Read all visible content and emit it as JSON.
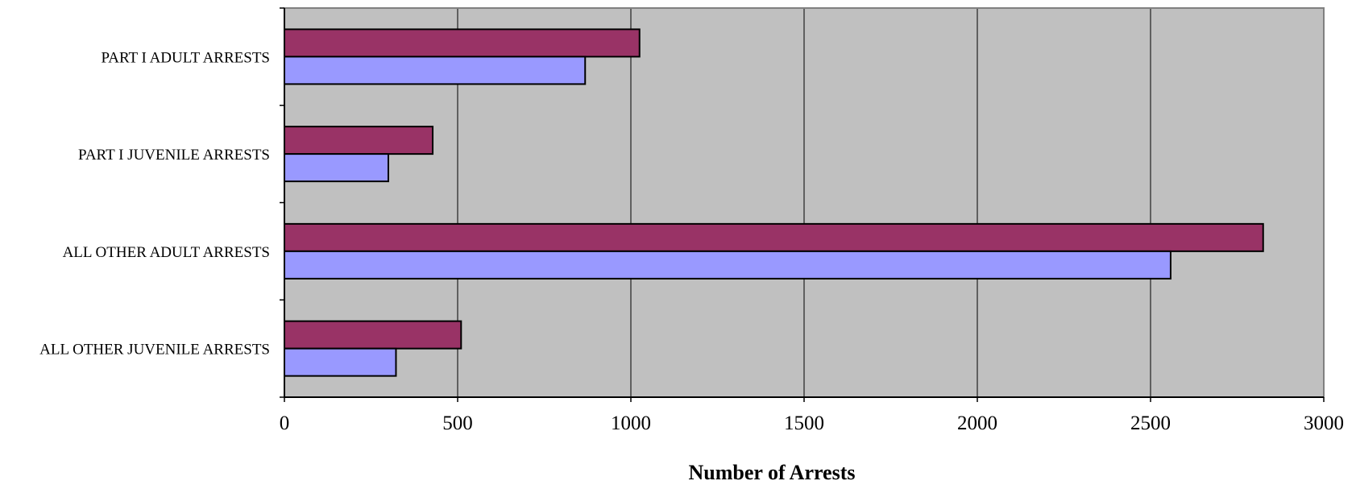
{
  "chart_data": {
    "type": "bar",
    "orientation": "horizontal",
    "title": "",
    "xlabel": "Number of Arrests",
    "ylabel": "",
    "categories": [
      "PART I ADULT ARRESTS",
      "PART I JUVENILE ARRESTS",
      "ALL OTHER ADULT ARRESTS",
      "ALL OTHER JUVENILE ARRESTS"
    ],
    "series": [
      {
        "color": "#993366",
        "values": [
          1025,
          428,
          2825,
          510
        ]
      },
      {
        "color": "#9999ff",
        "values": [
          868,
          300,
          2558,
          322
        ]
      }
    ],
    "xlim": [
      0,
      3000
    ],
    "xticks": [
      0,
      500,
      1000,
      1500,
      2000,
      2500,
      3000
    ],
    "grid": true,
    "legend": "none",
    "plot_background": "#c0c0c0"
  }
}
